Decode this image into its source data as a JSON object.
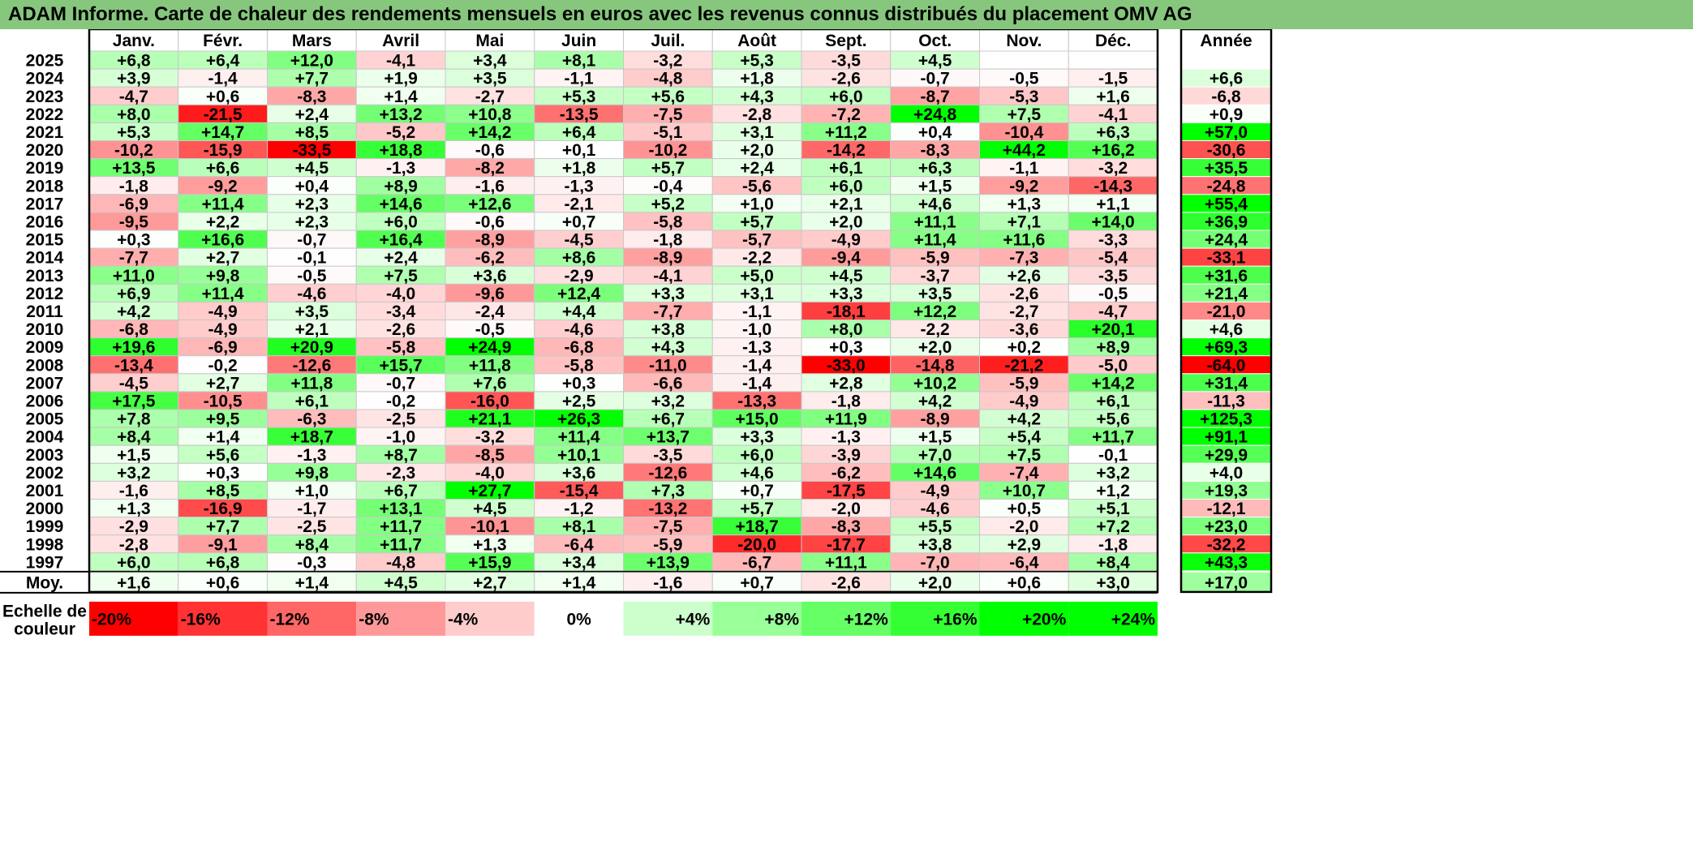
{
  "title": "ADAM Informe. Carte de chaleur des rendements mensuels en euros avec les revenus connus distribués du placement OMV AG",
  "chart_data": {
    "type": "heatmap",
    "title": "ADAM Informe. Carte de chaleur des rendements mensuels en euros avec les revenus connus distribués du placement OMV AG",
    "columns": [
      "Janv.",
      "Févr.",
      "Mars",
      "Avril",
      "Mai",
      "Juin",
      "Juil.",
      "Août",
      "Sept.",
      "Oct.",
      "Nov.",
      "Déc."
    ],
    "annual_label": "Année",
    "rows": [
      {
        "year": "2025",
        "values": [
          "+6,8",
          "+6,4",
          "+12,0",
          "-4,1",
          "+3,4",
          "+8,1",
          "-3,2",
          "+5,3",
          "-3,5",
          "+4,5",
          "",
          ""
        ],
        "annual": ""
      },
      {
        "year": "2024",
        "values": [
          "+3,9",
          "-1,4",
          "+7,7",
          "+1,9",
          "+3,5",
          "-1,1",
          "-4,8",
          "+1,8",
          "-2,6",
          "-0,7",
          "-0,5",
          "-1,5"
        ],
        "annual": "+6,6"
      },
      {
        "year": "2023",
        "values": [
          "-4,7",
          "+0,6",
          "-8,3",
          "+1,4",
          "-2,7",
          "+5,3",
          "+5,6",
          "+4,3",
          "+6,0",
          "-8,7",
          "-5,3",
          "+1,6"
        ],
        "annual": "-6,8"
      },
      {
        "year": "2022",
        "values": [
          "+8,0",
          "-21,5",
          "+2,4",
          "+13,2",
          "+10,8",
          "-13,5",
          "-7,5",
          "-2,8",
          "-7,2",
          "+24,8",
          "+7,5",
          "-4,1"
        ],
        "annual": "+0,9"
      },
      {
        "year": "2021",
        "values": [
          "+5,3",
          "+14,7",
          "+8,5",
          "-5,2",
          "+14,2",
          "+6,4",
          "-5,1",
          "+3,1",
          "+11,2",
          "+0,4",
          "-10,4",
          "+6,3"
        ],
        "annual": "+57,0"
      },
      {
        "year": "2020",
        "values": [
          "-10,2",
          "-15,9",
          "-33,5",
          "+18,8",
          "-0,6",
          "+0,1",
          "-10,2",
          "+2,0",
          "-14,2",
          "-8,3",
          "+44,2",
          "+16,2"
        ],
        "annual": "-30,6"
      },
      {
        "year": "2019",
        "values": [
          "+13,5",
          "+6,6",
          "+4,5",
          "-1,3",
          "-8,2",
          "+1,8",
          "+5,7",
          "+2,4",
          "+6,1",
          "+6,3",
          "-1,1",
          "-3,2"
        ],
        "annual": "+35,5"
      },
      {
        "year": "2018",
        "values": [
          "-1,8",
          "-9,2",
          "+0,4",
          "+8,9",
          "-1,6",
          "-1,3",
          "-0,4",
          "-5,6",
          "+6,0",
          "+1,5",
          "-9,2",
          "-14,3"
        ],
        "annual": "-24,8"
      },
      {
        "year": "2017",
        "values": [
          "-6,9",
          "+11,4",
          "+2,3",
          "+14,6",
          "+12,6",
          "-2,1",
          "+5,2",
          "+1,0",
          "+2,1",
          "+4,6",
          "+1,3",
          "+1,1"
        ],
        "annual": "+55,4"
      },
      {
        "year": "2016",
        "values": [
          "-9,5",
          "+2,2",
          "+2,3",
          "+6,0",
          "-0,6",
          "+0,7",
          "-5,8",
          "+5,7",
          "+2,0",
          "+11,1",
          "+7,1",
          "+14,0"
        ],
        "annual": "+36,9"
      },
      {
        "year": "2015",
        "values": [
          "+0,3",
          "+16,6",
          "-0,7",
          "+16,4",
          "-8,9",
          "-4,5",
          "-1,8",
          "-5,7",
          "-4,9",
          "+11,4",
          "+11,6",
          "-3,3"
        ],
        "annual": "+24,4"
      },
      {
        "year": "2014",
        "values": [
          "-7,7",
          "+2,7",
          "-0,1",
          "+2,4",
          "-6,2",
          "+8,6",
          "-8,9",
          "-2,2",
          "-9,4",
          "-5,9",
          "-7,3",
          "-5,4"
        ],
        "annual": "-33,1"
      },
      {
        "year": "2013",
        "values": [
          "+11,0",
          "+9,8",
          "-0,5",
          "+7,5",
          "+3,6",
          "-2,9",
          "-4,1",
          "+5,0",
          "+4,5",
          "-3,7",
          "+2,6",
          "-3,5"
        ],
        "annual": "+31,6"
      },
      {
        "year": "2012",
        "values": [
          "+6,9",
          "+11,4",
          "-4,6",
          "-4,0",
          "-9,6",
          "+12,4",
          "+3,3",
          "+3,1",
          "+3,3",
          "+3,5",
          "-2,6",
          "-0,5"
        ],
        "annual": "+21,4"
      },
      {
        "year": "2011",
        "values": [
          "+4,2",
          "-4,9",
          "+3,5",
          "-3,4",
          "-2,4",
          "+4,4",
          "-7,7",
          "-1,1",
          "-18,1",
          "+12,2",
          "-2,7",
          "-4,7"
        ],
        "annual": "-21,0"
      },
      {
        "year": "2010",
        "values": [
          "-6,8",
          "-4,9",
          "+2,1",
          "-2,6",
          "-0,5",
          "-4,6",
          "+3,8",
          "-1,0",
          "+8,0",
          "-2,2",
          "-3,6",
          "+20,1"
        ],
        "annual": "+4,6"
      },
      {
        "year": "2009",
        "values": [
          "+19,6",
          "-6,9",
          "+20,9",
          "-5,8",
          "+24,9",
          "-6,8",
          "+4,3",
          "-1,3",
          "+0,3",
          "+2,0",
          "+0,2",
          "+8,9"
        ],
        "annual": "+69,3"
      },
      {
        "year": "2008",
        "values": [
          "-13,4",
          "-0,2",
          "-12,6",
          "+15,7",
          "+11,8",
          "-5,8",
          "-11,0",
          "-1,4",
          "-33,0",
          "-14,8",
          "-21,2",
          "-5,0"
        ],
        "annual": "-64,0"
      },
      {
        "year": "2007",
        "values": [
          "-4,5",
          "+2,7",
          "+11,8",
          "-0,7",
          "+7,6",
          "+0,3",
          "-6,6",
          "-1,4",
          "+2,8",
          "+10,2",
          "-5,9",
          "+14,2"
        ],
        "annual": "+31,4"
      },
      {
        "year": "2006",
        "values": [
          "+17,5",
          "-10,5",
          "+6,1",
          "-0,2",
          "-16,0",
          "+2,5",
          "+3,2",
          "-13,3",
          "-1,8",
          "+4,2",
          "-4,9",
          "+6,1"
        ],
        "annual": "-11,3"
      },
      {
        "year": "2005",
        "values": [
          "+7,8",
          "+9,5",
          "-6,3",
          "-2,5",
          "+21,1",
          "+26,3",
          "+6,7",
          "+15,0",
          "+11,9",
          "-8,9",
          "+4,2",
          "+5,6"
        ],
        "annual": "+125,3"
      },
      {
        "year": "2004",
        "values": [
          "+8,4",
          "+1,4",
          "+18,7",
          "-1,0",
          "-3,2",
          "+11,4",
          "+13,7",
          "+3,3",
          "-1,3",
          "+1,5",
          "+5,4",
          "+11,7"
        ],
        "annual": "+91,1"
      },
      {
        "year": "2003",
        "values": [
          "+1,5",
          "+5,6",
          "-1,3",
          "+8,7",
          "-8,5",
          "+10,1",
          "-3,5",
          "+6,0",
          "-3,9",
          "+7,0",
          "+7,5",
          "-0,1"
        ],
        "annual": "+29,9"
      },
      {
        "year": "2002",
        "values": [
          "+3,2",
          "+0,3",
          "+9,8",
          "-2,3",
          "-4,0",
          "+3,6",
          "-12,6",
          "+4,6",
          "-6,2",
          "+14,6",
          "-7,4",
          "+3,2"
        ],
        "annual": "+4,0"
      },
      {
        "year": "2001",
        "values": [
          "-1,6",
          "+8,5",
          "+1,0",
          "+6,7",
          "+27,7",
          "-15,4",
          "+7,3",
          "+0,7",
          "-17,5",
          "-4,9",
          "+10,7",
          "+1,2"
        ],
        "annual": "+19,3"
      },
      {
        "year": "2000",
        "values": [
          "+1,3",
          "-16,9",
          "-1,7",
          "+13,1",
          "+4,5",
          "-1,2",
          "-13,2",
          "+5,7",
          "-2,0",
          "-4,6",
          "+0,5",
          "+5,1"
        ],
        "annual": "-12,1"
      },
      {
        "year": "1999",
        "values": [
          "-2,9",
          "+7,7",
          "-2,5",
          "+11,7",
          "-10,1",
          "+8,1",
          "-7,5",
          "+18,7",
          "-8,3",
          "+5,5",
          "-2,0",
          "+7,2"
        ],
        "annual": "+23,0"
      },
      {
        "year": "1998",
        "values": [
          "-2,8",
          "-9,1",
          "+8,4",
          "+11,7",
          "+1,3",
          "-6,4",
          "-5,9",
          "-20,0",
          "-17,7",
          "+3,8",
          "+2,9",
          "-1,8"
        ],
        "annual": "-32,2"
      },
      {
        "year": "1997",
        "values": [
          "+6,0",
          "+6,8",
          "-0,3",
          "-4,8",
          "+15,9",
          "+3,4",
          "+13,9",
          "-6,7",
          "+11,1",
          "-7,0",
          "-6,4",
          "+8,4"
        ],
        "annual": "+43,3"
      }
    ],
    "average": {
      "label": "Moy.",
      "values": [
        "+1,6",
        "+0,6",
        "+1,4",
        "+4,5",
        "+2,7",
        "+1,4",
        "-1,6",
        "+0,7",
        "-2,6",
        "+2,0",
        "+0,6",
        "+3,0"
      ],
      "annual": "+17,0"
    },
    "color_scale": {
      "label_line1": "Echelle de",
      "label_line2": "couleur",
      "steps": [
        {
          "label": "-20%",
          "value": -20
        },
        {
          "label": "-16%",
          "value": -16
        },
        {
          "label": "-12%",
          "value": -12
        },
        {
          "label": "-8%",
          "value": -8
        },
        {
          "label": "-4%",
          "value": -4
        },
        {
          "label": "0%",
          "value": 0
        },
        {
          "label": "+4%",
          "value": 4
        },
        {
          "label": "+8%",
          "value": 8
        },
        {
          "label": "+12%",
          "value": 12
        },
        {
          "label": "+16%",
          "value": 16
        },
        {
          "label": "+20%",
          "value": 20
        },
        {
          "label": "+24%",
          "value": 24
        }
      ],
      "negative_color": "#ff0000",
      "neutral_color": "#ffffff",
      "positive_color": "#00ff00",
      "title_bar_color": "#86c77d"
    }
  }
}
